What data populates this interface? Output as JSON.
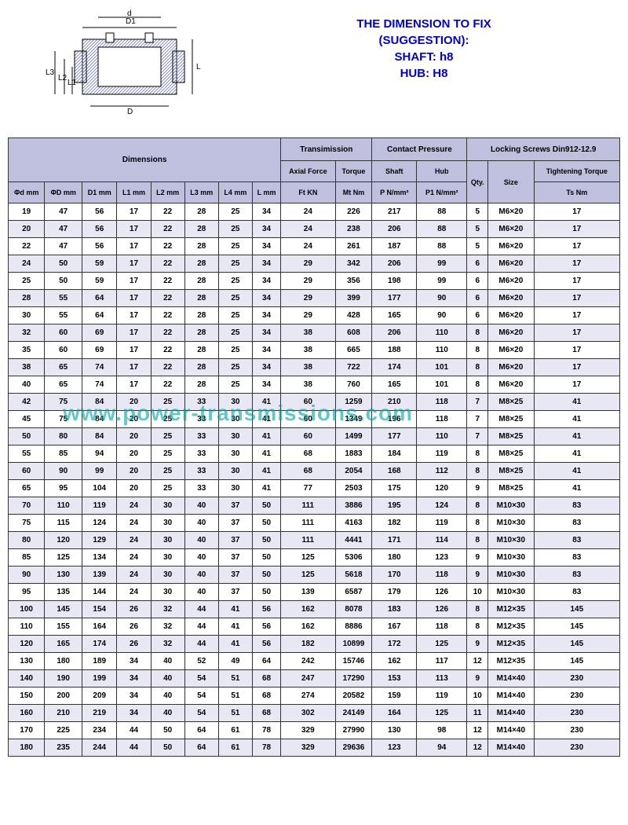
{
  "header": {
    "l1": "THE DIMENSION TO FIX",
    "l2": "(SUGGESTION):",
    "l3": "SHAFT: h8",
    "l4": "HUB: H8"
  },
  "watermark": "www.power-transmissions.com",
  "groups": {
    "dim": "Dimensions",
    "trans": "Transimission",
    "contact": "Contact Pressure",
    "screws": "Locking Screws Din912-12.9"
  },
  "sub1": {
    "af": "Axial Force",
    "tq": "Torque",
    "shaft": "Shaft",
    "hub": "Hub",
    "tt": "Tightening Torque"
  },
  "cols": [
    "Φd mm",
    "ΦD mm",
    "D1 mm",
    "L1 mm",
    "L2 mm",
    "L3 mm",
    "L4 mm",
    "L mm",
    "Ft KN",
    "Mt Nm",
    "P N/mm²",
    "P1 N/mm²",
    "Qty.",
    "Size",
    "Ts Nm"
  ],
  "labels": {
    "d": "d",
    "D": "D",
    "D1": "D1",
    "L": "L",
    "L1": "L1",
    "L2": "L2",
    "L3": "L3"
  },
  "rows": [
    [
      19,
      47,
      56,
      17,
      22,
      28,
      25,
      34,
      24,
      226,
      217,
      88,
      5,
      "M6×20",
      17
    ],
    [
      20,
      47,
      56,
      17,
      22,
      28,
      25,
      34,
      24,
      238,
      206,
      88,
      5,
      "M6×20",
      17
    ],
    [
      22,
      47,
      56,
      17,
      22,
      28,
      25,
      34,
      24,
      261,
      187,
      88,
      5,
      "M6×20",
      17
    ],
    [
      24,
      50,
      59,
      17,
      22,
      28,
      25,
      34,
      29,
      342,
      206,
      99,
      6,
      "M6×20",
      17
    ],
    [
      25,
      50,
      59,
      17,
      22,
      28,
      25,
      34,
      29,
      356,
      198,
      99,
      6,
      "M6×20",
      17
    ],
    [
      28,
      55,
      64,
      17,
      22,
      28,
      25,
      34,
      29,
      399,
      177,
      90,
      6,
      "M6×20",
      17
    ],
    [
      30,
      55,
      64,
      17,
      22,
      28,
      25,
      34,
      29,
      428,
      165,
      90,
      6,
      "M6×20",
      17
    ],
    [
      32,
      60,
      69,
      17,
      22,
      28,
      25,
      34,
      38,
      608,
      206,
      110,
      8,
      "M6×20",
      17
    ],
    [
      35,
      60,
      69,
      17,
      22,
      28,
      25,
      34,
      38,
      665,
      188,
      110,
      8,
      "M6×20",
      17
    ],
    [
      38,
      65,
      74,
      17,
      22,
      28,
      25,
      34,
      38,
      722,
      174,
      101,
      8,
      "M6×20",
      17
    ],
    [
      40,
      65,
      74,
      17,
      22,
      28,
      25,
      34,
      38,
      760,
      165,
      101,
      8,
      "M6×20",
      17
    ],
    [
      42,
      75,
      84,
      20,
      25,
      33,
      30,
      41,
      60,
      1259,
      210,
      118,
      7,
      "M8×25",
      41
    ],
    [
      45,
      75,
      84,
      20,
      25,
      33,
      30,
      41,
      60,
      1349,
      196,
      118,
      7,
      "M8×25",
      41
    ],
    [
      50,
      80,
      84,
      20,
      25,
      33,
      30,
      41,
      60,
      1499,
      177,
      110,
      7,
      "M8×25",
      41
    ],
    [
      55,
      85,
      94,
      20,
      25,
      33,
      30,
      41,
      68,
      1883,
      184,
      119,
      8,
      "M8×25",
      41
    ],
    [
      60,
      90,
      99,
      20,
      25,
      33,
      30,
      41,
      68,
      2054,
      168,
      112,
      8,
      "M8×25",
      41
    ],
    [
      65,
      95,
      104,
      20,
      25,
      33,
      30,
      41,
      77,
      2503,
      175,
      120,
      9,
      "M8×25",
      41
    ],
    [
      70,
      110,
      119,
      24,
      30,
      40,
      37,
      50,
      111,
      3886,
      195,
      124,
      8,
      "M10×30",
      83
    ],
    [
      75,
      115,
      124,
      24,
      30,
      40,
      37,
      50,
      111,
      4163,
      182,
      119,
      8,
      "M10×30",
      83
    ],
    [
      80,
      120,
      129,
      24,
      30,
      40,
      37,
      50,
      111,
      4441,
      171,
      114,
      8,
      "M10×30",
      83
    ],
    [
      85,
      125,
      134,
      24,
      30,
      40,
      37,
      50,
      125,
      5306,
      180,
      123,
      9,
      "M10×30",
      83
    ],
    [
      90,
      130,
      139,
      24,
      30,
      40,
      37,
      50,
      125,
      5618,
      170,
      118,
      9,
      "M10×30",
      83
    ],
    [
      95,
      135,
      144,
      24,
      30,
      40,
      37,
      50,
      139,
      6587,
      179,
      126,
      10,
      "M10×30",
      83
    ],
    [
      100,
      145,
      154,
      26,
      32,
      44,
      41,
      56,
      162,
      8078,
      183,
      126,
      8,
      "M12×35",
      145
    ],
    [
      110,
      155,
      164,
      26,
      32,
      44,
      41,
      56,
      162,
      8886,
      167,
      118,
      8,
      "M12×35",
      145
    ],
    [
      120,
      165,
      174,
      26,
      32,
      44,
      41,
      56,
      182,
      10899,
      172,
      125,
      9,
      "M12×35",
      145
    ],
    [
      130,
      180,
      189,
      34,
      40,
      52,
      49,
      64,
      242,
      15746,
      162,
      117,
      12,
      "M12×35",
      145
    ],
    [
      140,
      190,
      199,
      34,
      40,
      54,
      51,
      68,
      247,
      17290,
      153,
      113,
      9,
      "M14×40",
      230
    ],
    [
      150,
      200,
      209,
      34,
      40,
      54,
      51,
      68,
      274,
      20582,
      159,
      119,
      10,
      "M14×40",
      230
    ],
    [
      160,
      210,
      219,
      34,
      40,
      54,
      51,
      68,
      302,
      24149,
      164,
      125,
      11,
      "M14×40",
      230
    ],
    [
      170,
      225,
      234,
      44,
      50,
      64,
      61,
      78,
      329,
      27990,
      130,
      98,
      12,
      "M14×40",
      230
    ],
    [
      180,
      235,
      244,
      44,
      50,
      64,
      61,
      78,
      329,
      29636,
      123,
      94,
      12,
      "M14×40",
      230
    ]
  ],
  "colors": {
    "hdr_bg": "#bfc0de",
    "alt_bg": "#e8e8f5",
    "border": "#333333",
    "header_text": "#0000cc",
    "watermark": "#00a3a3",
    "diagram_hatch": "#6b7dd1"
  }
}
